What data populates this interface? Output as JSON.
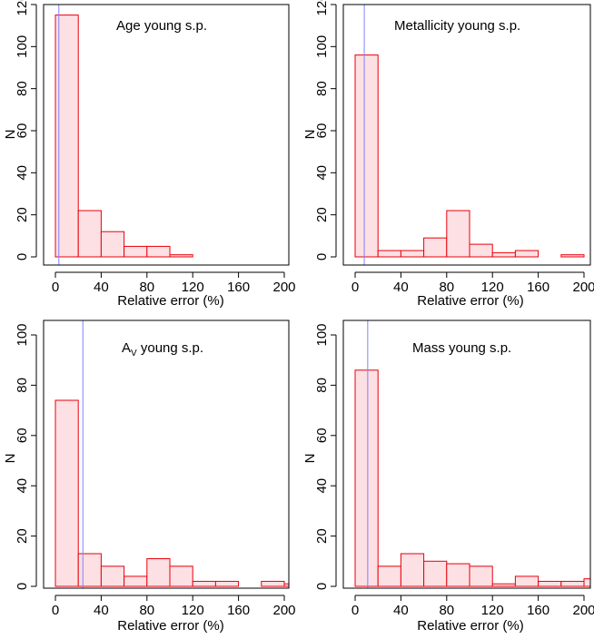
{
  "chart_data": [
    {
      "type": "bar",
      "panel_label": "Age young s.p.",
      "xlabel": "Relative error (%)",
      "ylabel": "N",
      "xlim": [
        0,
        200
      ],
      "ylim": [
        0,
        120
      ],
      "xticks": [
        0,
        40,
        80,
        120,
        160,
        200
      ],
      "yticks": [
        0,
        20,
        40,
        60,
        80,
        100,
        120
      ],
      "bin_edges": [
        0,
        20,
        40,
        60,
        80,
        100,
        120,
        140,
        160,
        180,
        200
      ],
      "values": [
        115,
        22,
        12,
        5,
        5,
        1,
        0,
        0,
        0,
        0
      ],
      "reference_line_x": 3,
      "bar_fill": "#fde0e3",
      "bar_stroke": "#e8000b",
      "line_color": "#8080ff"
    },
    {
      "type": "bar",
      "panel_label": "Metallicity young s.p.",
      "xlabel": "Relative error (%)",
      "ylabel": "N",
      "xlim": [
        0,
        200
      ],
      "ylim": [
        0,
        120
      ],
      "xticks": [
        0,
        40,
        80,
        120,
        160,
        200
      ],
      "yticks": [
        0,
        20,
        40,
        60,
        80,
        100,
        120
      ],
      "bin_edges": [
        0,
        20,
        40,
        60,
        80,
        100,
        120,
        140,
        160,
        180,
        200
      ],
      "values": [
        96,
        3,
        3,
        9,
        22,
        6,
        2,
        3,
        0,
        1
      ],
      "reference_line_x": 8,
      "bar_fill": "#fde0e3",
      "bar_stroke": "#e8000b",
      "line_color": "#8080ff"
    },
    {
      "type": "bar",
      "panel_label_main": "A",
      "panel_label_sub": "V",
      "panel_label_rest": " young s.p.",
      "xlabel": "Relative error (%)",
      "ylabel": "N",
      "xlim": [
        0,
        200
      ],
      "ylim": [
        0,
        100
      ],
      "xticks": [
        0,
        40,
        80,
        120,
        160,
        200
      ],
      "yticks": [
        0,
        20,
        40,
        60,
        80,
        100
      ],
      "bin_edges": [
        0,
        20,
        40,
        60,
        80,
        100,
        120,
        140,
        160,
        180,
        200,
        220
      ],
      "values": [
        74,
        13,
        8,
        4,
        11,
        8,
        2,
        2,
        0,
        2,
        1
      ],
      "reference_line_x": 24,
      "bar_fill": "#fde0e3",
      "bar_stroke": "#e8000b",
      "line_color": "#8080ff"
    },
    {
      "type": "bar",
      "panel_label": "Mass young s.p.",
      "xlabel": "Relative error (%)",
      "ylabel": "N",
      "xlim": [
        0,
        200
      ],
      "ylim": [
        0,
        100
      ],
      "xticks": [
        0,
        40,
        80,
        120,
        160,
        200
      ],
      "yticks": [
        0,
        20,
        40,
        60,
        80,
        100
      ],
      "bin_edges": [
        0,
        20,
        40,
        60,
        80,
        100,
        120,
        140,
        160,
        180,
        200,
        220
      ],
      "values": [
        86,
        8,
        13,
        10,
        9,
        8,
        1,
        4,
        2,
        2,
        3
      ],
      "reference_line_x": 11,
      "bar_fill": "#fde0e3",
      "bar_stroke": "#e8000b",
      "line_color": "#8080ff"
    }
  ]
}
